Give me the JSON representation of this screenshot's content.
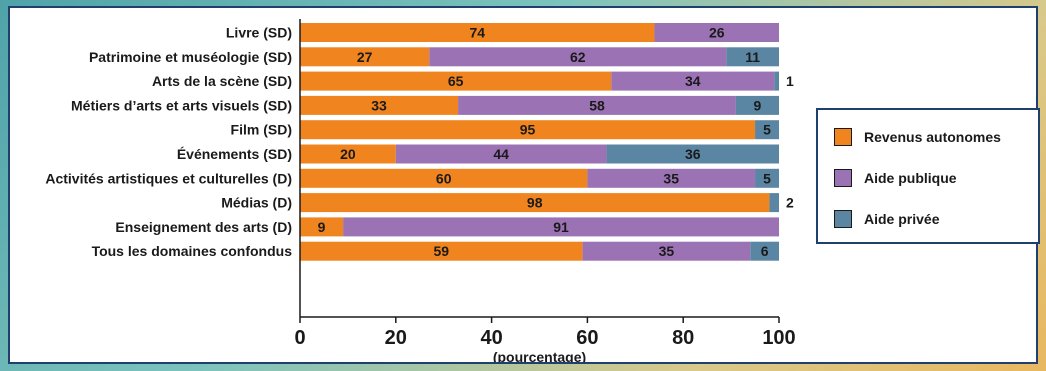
{
  "chart_data": {
    "type": "bar",
    "orientation": "horizontal",
    "stacked": true,
    "categories": [
      "Livre (SD)",
      "Patrimoine et muséologie (SD)",
      "Arts de la scène (SD)",
      "Métiers d’arts et arts visuels (SD)",
      "Film (SD)",
      "Événements (SD)",
      "Activités artistiques et culturelles (D)",
      "Médias (D)",
      "Enseignement des arts (D)",
      "Tous les domaines confondus"
    ],
    "series": [
      {
        "name": "Revenus autonomes",
        "color": "#f0841e",
        "values": [
          74,
          27,
          65,
          33,
          95,
          20,
          60,
          98,
          9,
          59
        ]
      },
      {
        "name": "Aide publique",
        "color": "#9b72b4",
        "values": [
          26,
          62,
          34,
          58,
          0,
          44,
          35,
          0,
          91,
          35
        ]
      },
      {
        "name": "Aide privée",
        "color": "#5b86a3",
        "values": [
          0,
          11,
          1,
          9,
          5,
          36,
          5,
          2,
          0,
          6
        ]
      }
    ],
    "xlabel": "(pourcentage)",
    "xlim": [
      0,
      100
    ],
    "xticks": [
      0,
      20,
      40,
      60,
      80,
      100
    ],
    "legend_position": "right"
  }
}
